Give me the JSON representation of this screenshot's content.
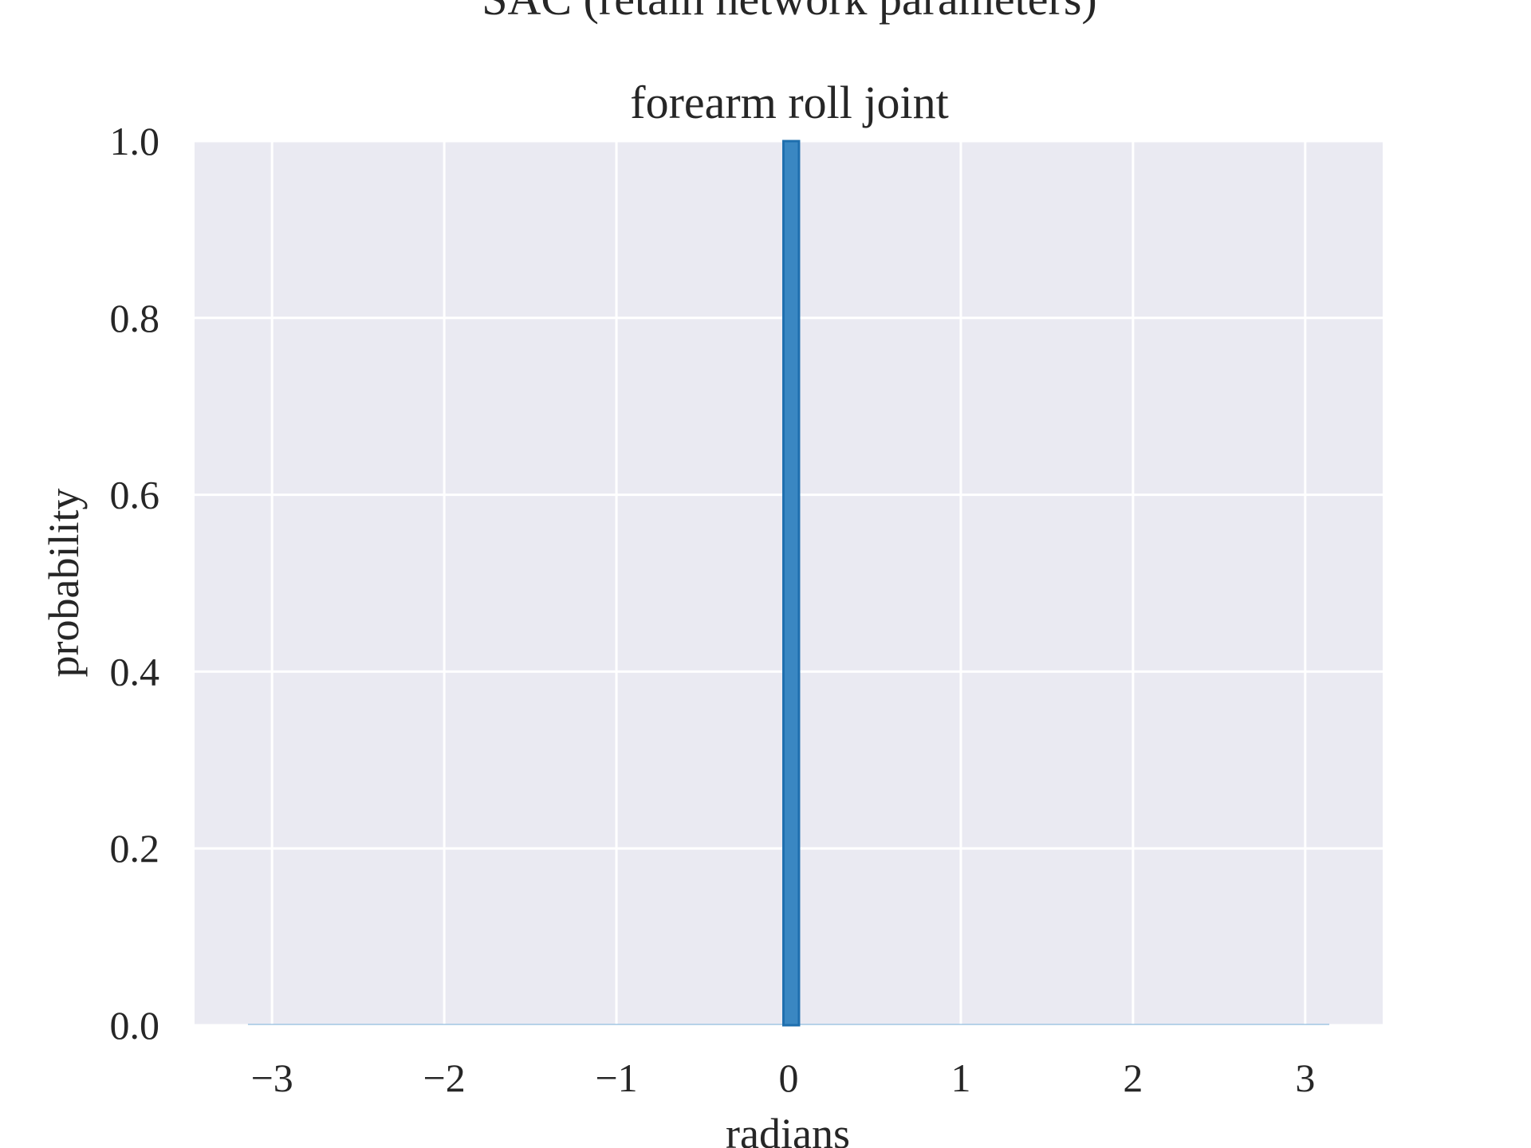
{
  "chart_data": {
    "type": "bar",
    "suptitle": "SAC (retain network parameters)",
    "title": "forearm roll joint",
    "xlabel": "radians",
    "ylabel": "probability",
    "xlim": [
      -3.45,
      3.45
    ],
    "ylim": [
      0.0,
      1.0
    ],
    "xticks": [
      -3,
      -2,
      -1,
      0,
      1,
      2,
      3
    ],
    "xtick_labels": [
      "−3",
      "−2",
      "−1",
      "0",
      "1",
      "2",
      "3"
    ],
    "yticks": [
      0.0,
      0.2,
      0.4,
      0.6,
      0.8,
      1.0
    ],
    "ytick_labels": [
      "0.0",
      "0.2",
      "0.4",
      "0.6",
      "0.8",
      "1.0"
    ],
    "grid": true,
    "background_color": "#eaeaf2",
    "bar_color": "#3a87c2",
    "bar_edge_color": "#1f6fae",
    "baseline_range": [
      -3.14,
      3.14
    ],
    "bins": [
      {
        "x0": -0.03,
        "x1": 0.06,
        "value": 1.0
      }
    ]
  }
}
